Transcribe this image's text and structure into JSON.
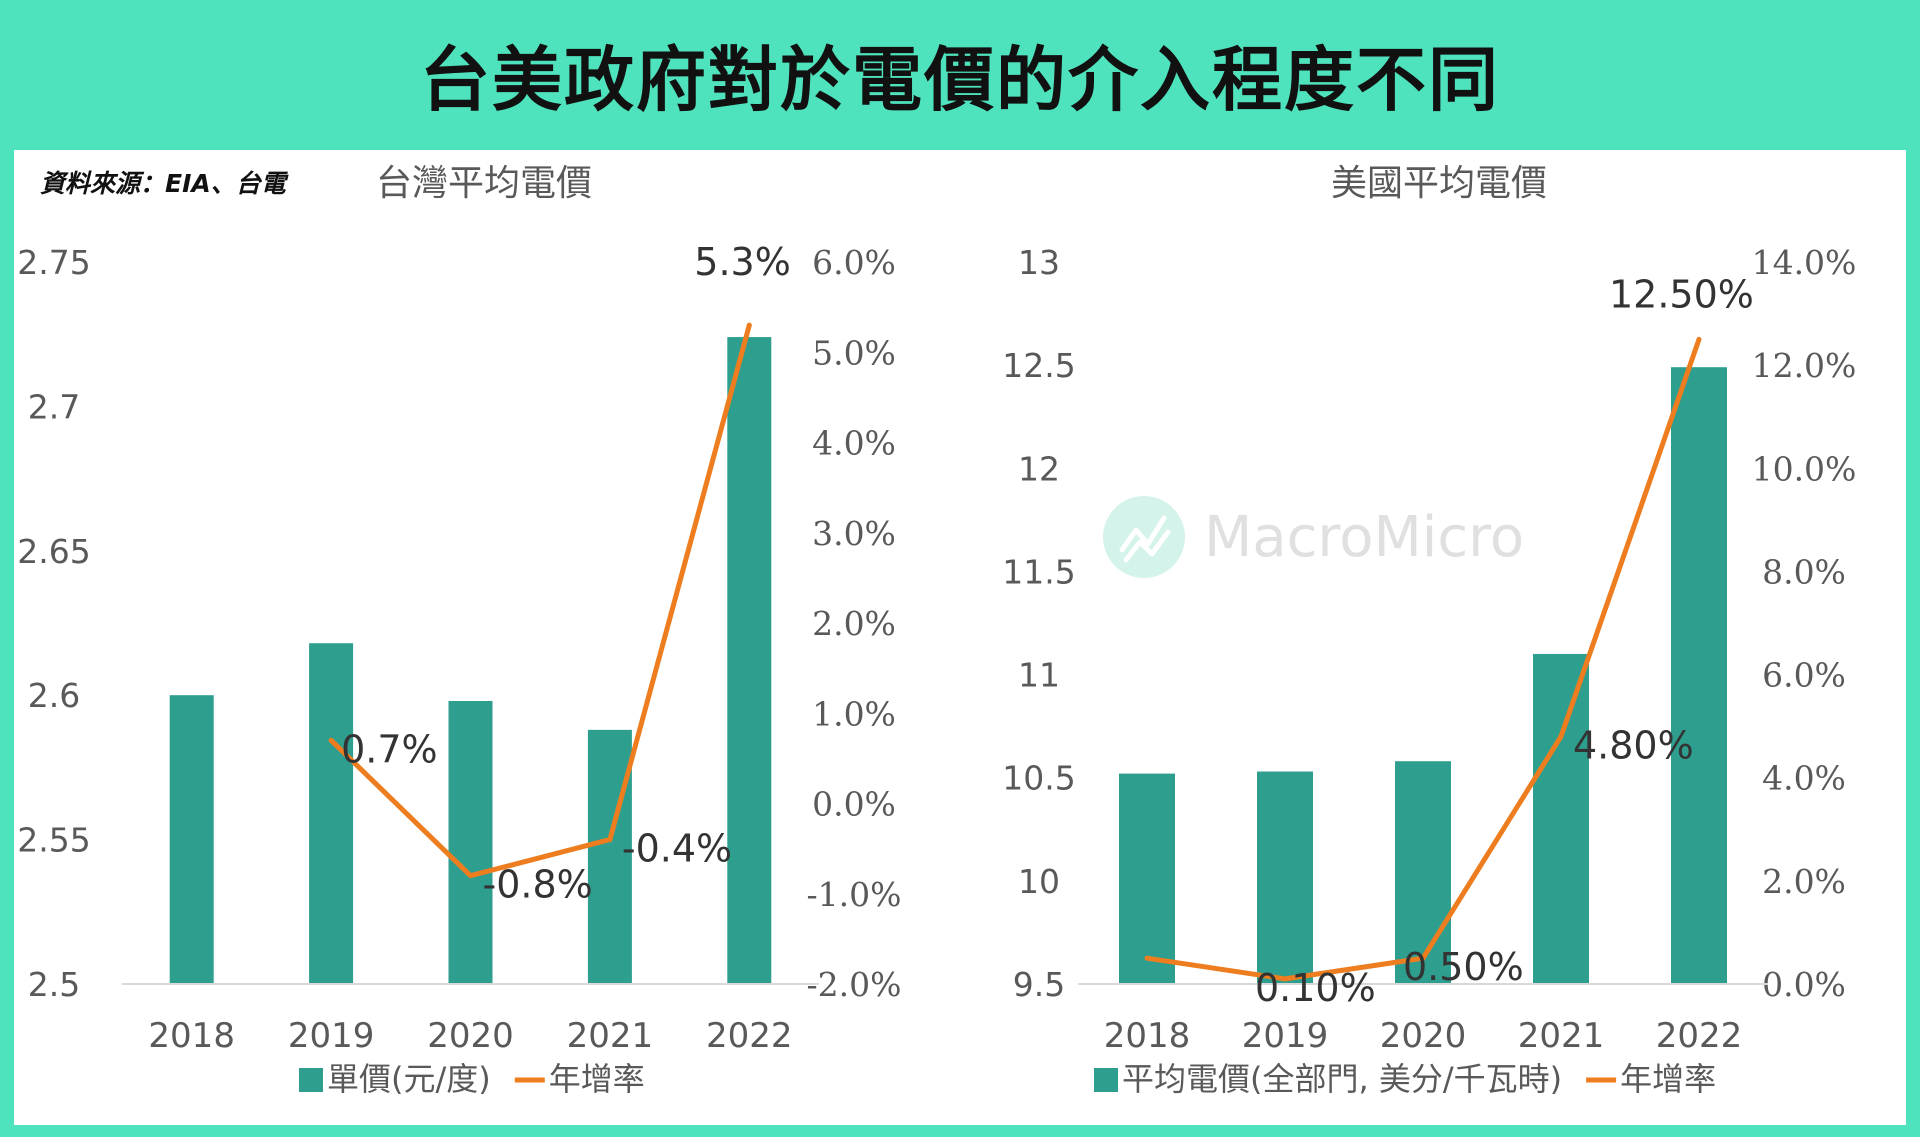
{
  "page": {
    "title": "台美政府對於電價的介入程度不同",
    "source": "資料來源：EIA、台電"
  },
  "watermark": {
    "text": "MacroMicro",
    "icon": "chart-line-icon"
  },
  "colors": {
    "bar": "#2e9e8f",
    "line": "#ed7d1f",
    "banner": "#4fe3bd",
    "axis_text": "#595959",
    "label_text": "#333333"
  },
  "chart_data": [
    {
      "type": "bar",
      "title": "台灣平均電價",
      "categories": [
        "2018",
        "2019",
        "2020",
        "2021",
        "2022"
      ],
      "series": [
        {
          "name": "單價(元/度)",
          "kind": "bar",
          "axis": "left",
          "values": [
            2.6,
            2.618,
            2.598,
            2.588,
            2.724
          ]
        },
        {
          "name": "年增率",
          "kind": "line",
          "axis": "right",
          "values": [
            null,
            0.7,
            -0.8,
            -0.4,
            5.3
          ]
        }
      ],
      "y_left": {
        "min": 2.5,
        "max": 2.75,
        "ticks": [
          "2.5",
          "2.55",
          "2.6",
          "2.65",
          "2.7",
          "2.75"
        ]
      },
      "y_right": {
        "min": -2.0,
        "max": 6.0,
        "ticks": [
          "-2.0%",
          "-1.0%",
          "0.0%",
          "1.0%",
          "2.0%",
          "3.0%",
          "4.0%",
          "5.0%",
          "6.0%"
        ]
      },
      "line_labels": [
        "",
        "0.7%",
        "-0.8%",
        "-0.4%",
        "5.3%"
      ],
      "legend": [
        "單價(元/度)",
        "年增率"
      ],
      "legend_position": "bottom"
    },
    {
      "type": "bar",
      "title": "美國平均電價",
      "categories": [
        "2018",
        "2019",
        "2020",
        "2021",
        "2022"
      ],
      "series": [
        {
          "name": "平均電價(全部門, 美分/千瓦時)",
          "kind": "bar",
          "axis": "left",
          "values": [
            10.52,
            10.53,
            10.58,
            11.1,
            12.49
          ]
        },
        {
          "name": "年增率",
          "kind": "line",
          "axis": "right",
          "values": [
            0.5,
            0.1,
            0.5,
            4.8,
            12.5
          ]
        }
      ],
      "y_left": {
        "min": 9.5,
        "max": 13,
        "ticks": [
          "9.5",
          "10",
          "10.5",
          "11",
          "11.5",
          "12",
          "12.5",
          "13"
        ]
      },
      "y_right": {
        "min": 0.0,
        "max": 14.0,
        "ticks": [
          "0.0%",
          "2.0%",
          "4.0%",
          "6.0%",
          "8.0%",
          "10.0%",
          "12.0%",
          "14.0%"
        ]
      },
      "line_labels": [
        "",
        "0.10%",
        "0.50%",
        "4.80%",
        "12.50%"
      ],
      "legend": [
        "平均電價(全部門, 美分/千瓦時)",
        "年增率"
      ],
      "legend_position": "bottom"
    }
  ]
}
